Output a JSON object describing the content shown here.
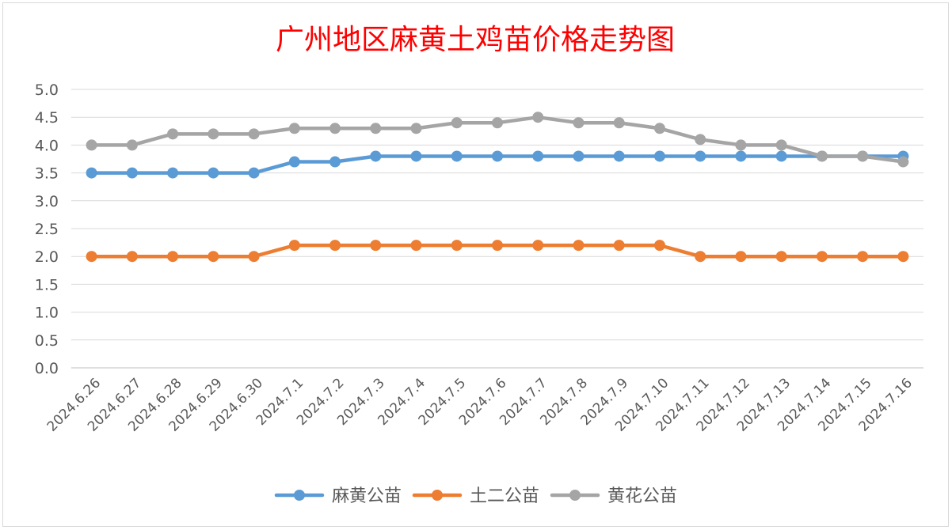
{
  "chart_data": {
    "type": "line",
    "title": "广州地区麻黄土鸡苗价格走势图",
    "xlabel": "",
    "ylabel": "",
    "ylim": [
      0,
      5
    ],
    "y_ticks": [
      "0.0",
      "0.5",
      "1.0",
      "1.5",
      "2.0",
      "2.5",
      "3.0",
      "3.5",
      "4.0",
      "4.5",
      "5.0"
    ],
    "grid": true,
    "legend_position": "bottom",
    "categories": [
      "2024.6.26",
      "2024.6.27",
      "2024.6.28",
      "2024.6.29",
      "2024.6.30",
      "2024.7.1",
      "2024.7.2",
      "2024.7.3",
      "2024.7.4",
      "2024.7.5",
      "2024.7.6",
      "2024.7.7",
      "2024.7.8",
      "2024.7.9",
      "2024.7.10",
      "2024.7.11",
      "2024.7.12",
      "2024.7.13",
      "2024.7.14",
      "2024.7.15",
      "2024.7.16"
    ],
    "series": [
      {
        "name": "麻黄公苗",
        "color": "#5b9bd5",
        "values": [
          3.5,
          3.5,
          3.5,
          3.5,
          3.5,
          3.7,
          3.7,
          3.8,
          3.8,
          3.8,
          3.8,
          3.8,
          3.8,
          3.8,
          3.8,
          3.8,
          3.8,
          3.8,
          3.8,
          3.8,
          3.8
        ]
      },
      {
        "name": "土二公苗",
        "color": "#ed7d31",
        "values": [
          2.0,
          2.0,
          2.0,
          2.0,
          2.0,
          2.2,
          2.2,
          2.2,
          2.2,
          2.2,
          2.2,
          2.2,
          2.2,
          2.2,
          2.2,
          2.0,
          2.0,
          2.0,
          2.0,
          2.0,
          2.0
        ]
      },
      {
        "name": "黄花公苗",
        "color": "#a5a5a5",
        "values": [
          4.0,
          4.0,
          4.2,
          4.2,
          4.2,
          4.3,
          4.3,
          4.3,
          4.3,
          4.4,
          4.4,
          4.5,
          4.4,
          4.4,
          4.3,
          4.1,
          4.0,
          4.0,
          3.8,
          3.8,
          3.7
        ]
      }
    ]
  }
}
